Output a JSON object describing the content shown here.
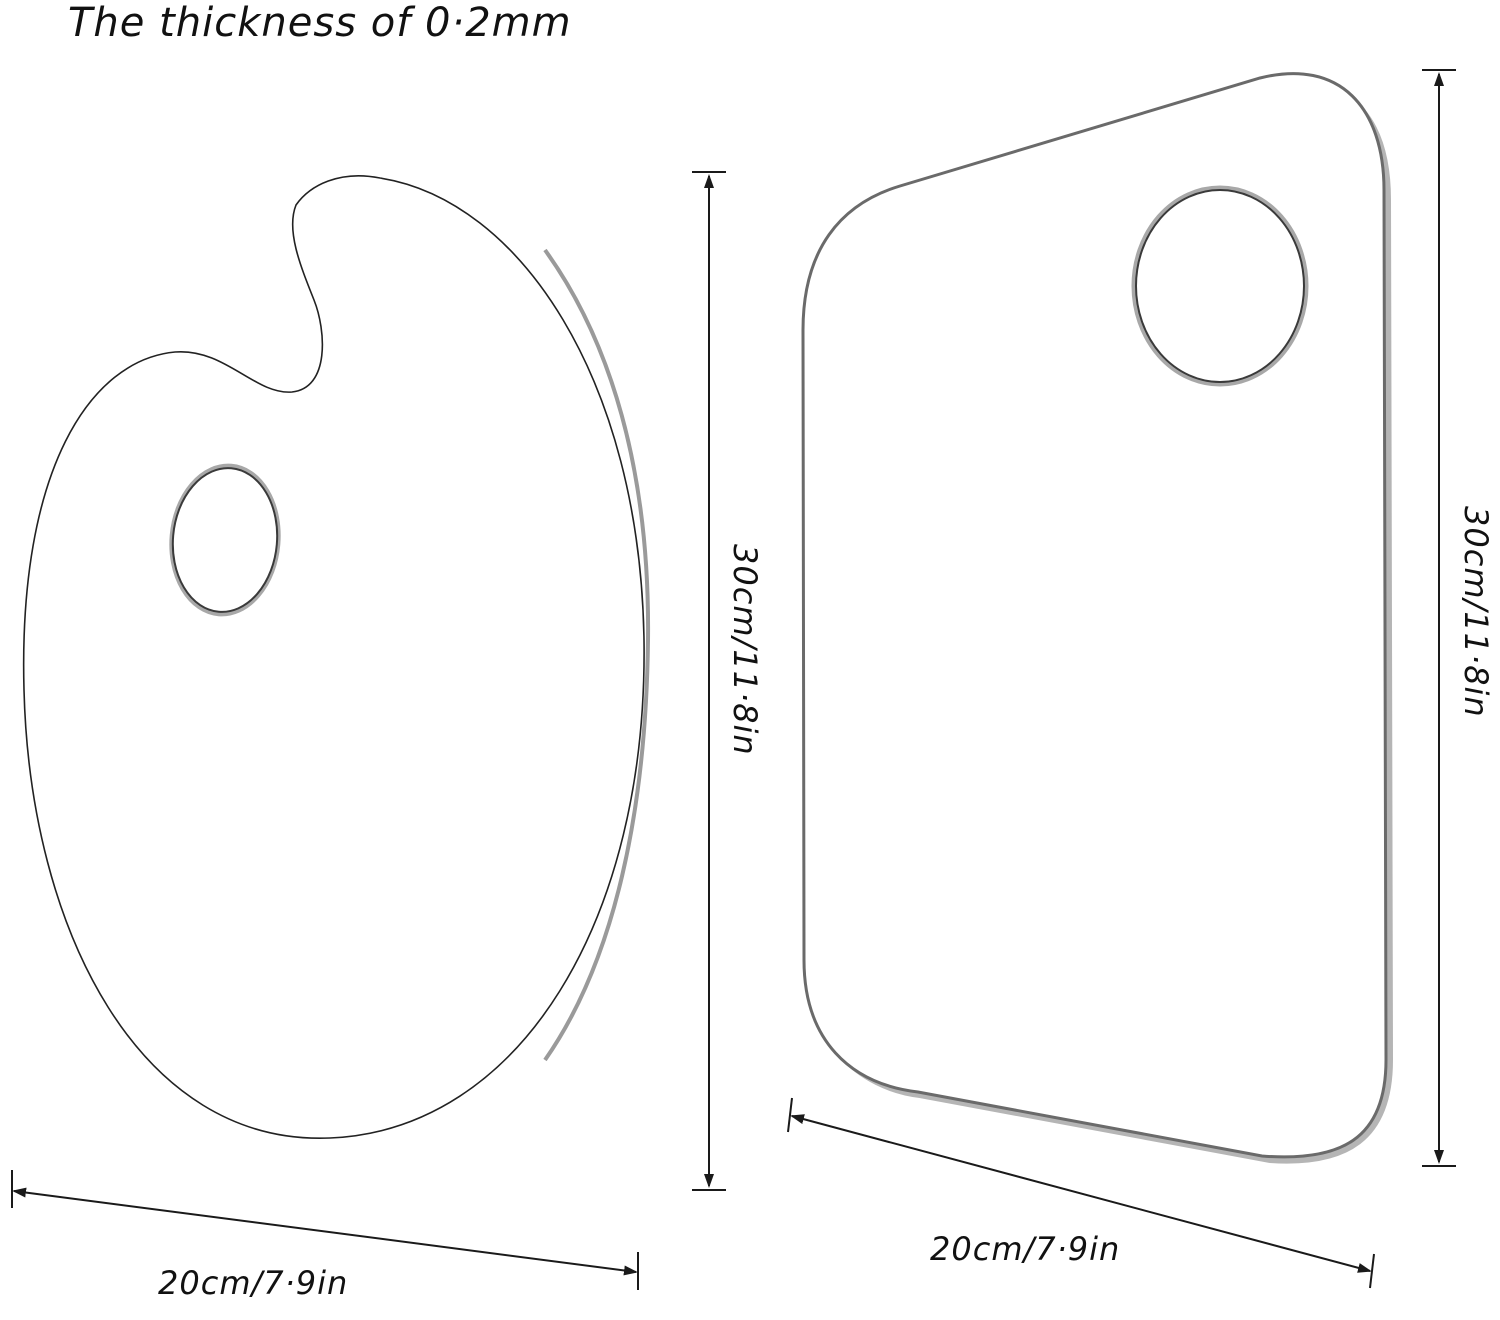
{
  "title": "The thickness of 0·2mm",
  "oval_palette": {
    "height_label": "30cm/11·8in",
    "width_label": "20cm/7·9in"
  },
  "rectangular_palette": {
    "height_label": "30cm/11·8in",
    "width_label": "20cm/7·9in"
  }
}
